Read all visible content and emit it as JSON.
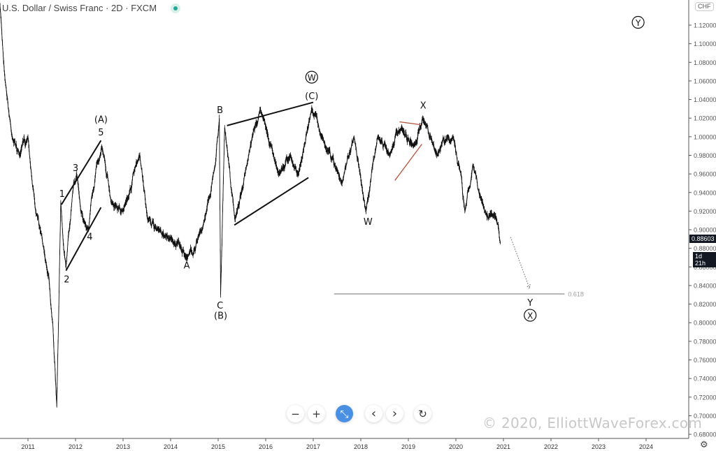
{
  "header": {
    "title": "U.S. Dollar / Swiss Franc · 2D · FXCM",
    "status": "market-open-dot"
  },
  "axis": {
    "currency_badge": "CHF",
    "last_price": "0.88603",
    "countdown": "1d 21h"
  },
  "controls": {
    "zoom_out": "−",
    "zoom_in": "+",
    "reset_scale": "⤡",
    "scroll_left": "‹",
    "scroll_right": "›",
    "reset": "↻"
  },
  "watermark": "© 2020, ElliottWaveForex.com",
  "settings_icon": "gear-icon",
  "chart_data": {
    "type": "line",
    "symbol": "USD/CHF",
    "ylim": [
      0.67,
      1.14
    ],
    "xlim": [
      "2010-06-01",
      "2025-01-01"
    ],
    "y_ticks": [
      "1.12000",
      "1.10000",
      "1.08000",
      "1.06000",
      "1.04000",
      "1.02000",
      "1.00000",
      "0.98000",
      "0.96000",
      "0.94000",
      "0.92000",
      "0.90000",
      "0.88000",
      "0.86000",
      "0.84000",
      "0.82000",
      "0.80000",
      "0.78000",
      "0.76000",
      "0.74000",
      "0.72000",
      "0.70000",
      "0.68000"
    ],
    "x_ticks": [
      "2011",
      "2012",
      "2013",
      "2014",
      "2015",
      "2016",
      "2017",
      "2018",
      "2019",
      "2020",
      "2021",
      "2022",
      "2023",
      "2024"
    ],
    "grid": false,
    "price": [
      [
        "2010-06-01",
        1.14
      ],
      [
        "2010-07-10",
        1.06
      ],
      [
        "2010-09-01",
        1.0
      ],
      [
        "2010-11-01",
        0.98
      ],
      [
        "2011-01-01",
        1.0
      ],
      [
        "2011-03-01",
        0.92
      ],
      [
        "2011-05-01",
        0.88
      ],
      [
        "2011-06-10",
        0.85
      ],
      [
        "2011-07-10",
        0.8
      ],
      [
        "2011-08-10",
        0.71
      ],
      [
        "2011-09-10",
        0.93
      ],
      [
        "2011-10-20",
        0.86
      ],
      [
        "2011-12-10",
        0.94
      ],
      [
        "2012-01-10",
        0.96
      ],
      [
        "2012-03-01",
        0.91
      ],
      [
        "2012-04-10",
        0.9
      ],
      [
        "2012-06-10",
        0.97
      ],
      [
        "2012-07-20",
        0.99
      ],
      [
        "2012-10-01",
        0.93
      ],
      [
        "2013-01-01",
        0.92
      ],
      [
        "2013-05-10",
        0.98
      ],
      [
        "2013-07-10",
        0.91
      ],
      [
        "2013-10-01",
        0.9
      ],
      [
        "2014-01-10",
        0.89
      ],
      [
        "2014-05-10",
        0.87
      ],
      [
        "2014-09-01",
        0.9
      ],
      [
        "2014-12-10",
        0.97
      ],
      [
        "2015-01-10",
        1.02
      ],
      [
        "2015-01-20",
        0.83
      ],
      [
        "2015-02-20",
        1.01
      ],
      [
        "2015-05-10",
        0.91
      ],
      [
        "2015-08-10",
        0.97
      ],
      [
        "2015-11-20",
        1.03
      ],
      [
        "2016-04-10",
        0.96
      ],
      [
        "2016-07-10",
        0.98
      ],
      [
        "2016-09-10",
        0.96
      ],
      [
        "2016-12-20",
        1.03
      ],
      [
        "2017-03-10",
        1.0
      ],
      [
        "2017-08-10",
        0.95
      ],
      [
        "2017-11-10",
        1.0
      ],
      [
        "2018-02-10",
        0.92
      ],
      [
        "2018-05-10",
        1.0
      ],
      [
        "2018-08-10",
        0.98
      ],
      [
        "2018-11-10",
        1.01
      ],
      [
        "2019-02-10",
        0.99
      ],
      [
        "2019-04-20",
        1.02
      ],
      [
        "2019-08-10",
        0.98
      ],
      [
        "2019-12-10",
        1.0
      ],
      [
        "2020-02-10",
        0.96
      ],
      [
        "2020-03-10",
        0.92
      ],
      [
        "2020-05-10",
        0.97
      ],
      [
        "2020-08-10",
        0.92
      ],
      [
        "2020-10-10",
        0.915
      ],
      [
        "2020-11-10",
        0.91
      ],
      [
        "2020-12-10",
        0.886
      ]
    ],
    "labels": [
      {
        "text": "(A)",
        "date": "2012-07-15",
        "price": 1.019
      },
      {
        "text": "5",
        "date": "2012-07-15",
        "price": 1.005
      },
      {
        "text": "3",
        "date": "2012-01-01",
        "price": 0.967
      },
      {
        "text": "1",
        "date": "2011-09-20",
        "price": 0.939
      },
      {
        "text": "2",
        "date": "2011-10-25",
        "price": 0.847
      },
      {
        "text": "4",
        "date": "2012-04-20",
        "price": 0.893
      },
      {
        "text": "A",
        "date": "2014-05-05",
        "price": 0.862
      },
      {
        "text": "B",
        "date": "2015-01-15",
        "price": 1.029
      },
      {
        "text": "C",
        "date": "2015-01-15",
        "price": 0.819
      },
      {
        "text": "(B)",
        "date": "2015-01-20",
        "price": 0.808
      },
      {
        "text": "(C)",
        "date": "2016-12-20",
        "price": 1.044
      },
      {
        "text": "W",
        "date": "2016-12-20",
        "price": 1.064,
        "circled": true
      },
      {
        "text": "X",
        "date": "2019-04-25",
        "price": 1.034
      },
      {
        "text": "W",
        "date": "2018-02-25",
        "price": 0.909
      },
      {
        "text": "Y",
        "date": "2021-07-25",
        "price": 0.822
      },
      {
        "text": "X",
        "date": "2021-07-25",
        "price": 0.808,
        "circled": true
      },
      {
        "text": "Y",
        "date": "2023-11-01",
        "price": 1.123,
        "circled": true
      }
    ],
    "trendlines": [
      {
        "from": [
          "2011-09-15",
          0.927
        ],
        "to": [
          "2012-07-15",
          0.996
        ],
        "color": "#111111"
      },
      {
        "from": [
          "2011-10-20",
          0.856
        ],
        "to": [
          "2012-07-15",
          0.924
        ],
        "color": "#111111"
      },
      {
        "from": [
          "2015-03-10",
          1.012
        ],
        "to": [
          "2017-01-01",
          1.037
        ],
        "color": "#111111"
      },
      {
        "from": [
          "2015-05-05",
          0.905
        ],
        "to": [
          "2016-11-25",
          0.956
        ],
        "color": "#111111"
      },
      {
        "from": [
          "2018-10-25",
          1.016
        ],
        "to": [
          "2019-04-01",
          1.013
        ],
        "color": "#b5533c"
      },
      {
        "from": [
          "2018-09-20",
          0.953
        ],
        "to": [
          "2019-04-15",
          0.992
        ],
        "color": "#b5533c"
      }
    ],
    "projection_arrow": {
      "from": [
        "2021-02-25",
        0.892
      ],
      "to": [
        "2021-07-20",
        0.837
      ],
      "style": "dotted"
    },
    "fib_level": {
      "label": "0.618",
      "price": 0.831,
      "from": "2017-06-10",
      "to": "2022-04-15",
      "color": "#9e9e9e"
    }
  }
}
